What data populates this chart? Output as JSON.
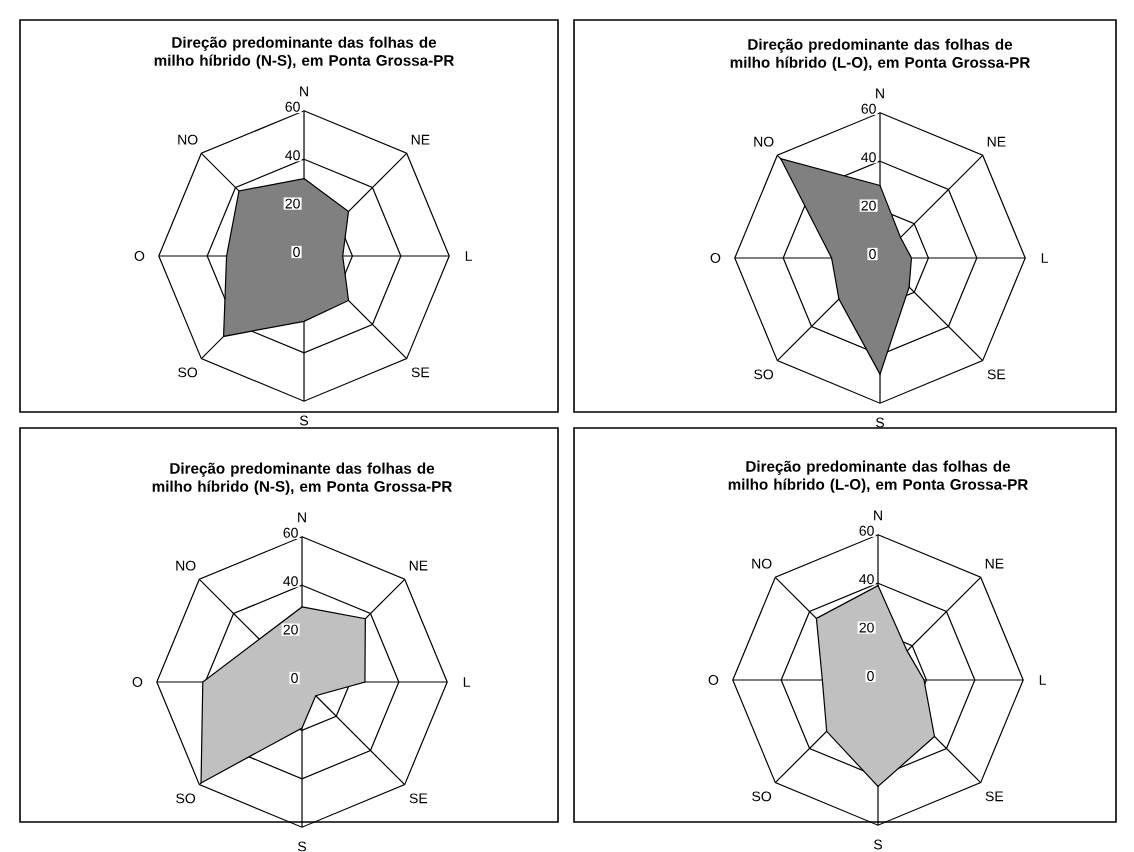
{
  "chart_data": [
    {
      "type": "radar",
      "title": "**Direção predominante das folhas de milho híbrido (N-S), em Ponta Grossa-PR**",
      "categories": [
        "N",
        "NE",
        "L",
        "SE",
        "S",
        "SO",
        "O",
        "NO"
      ],
      "ylim": [
        0,
        60
      ],
      "yticks": [
        0,
        20,
        40,
        60
      ],
      "grid": true,
      "series": [
        {
          "color": "#808080",
          "values": [
            32,
            26,
            16,
            26,
            27,
            47,
            32,
            38
          ]
        }
      ]
    },
    {
      "type": "radar",
      "title": "**Direção predominante das folhas de milho híbrido (L-O), em Ponta Grossa-PR**",
      "categories": [
        "N",
        "NE",
        "L",
        "SE",
        "S",
        "SO",
        "O",
        "NO"
      ],
      "ylim": [
        0,
        60
      ],
      "yticks": [
        0,
        20,
        40,
        60
      ],
      "grid": true,
      "series": [
        {
          "color": "#808080",
          "values": [
            30,
            12,
            13,
            17,
            48,
            24,
            20,
            58
          ]
        }
      ]
    },
    {
      "type": "radar",
      "title": "**Direção predominante das folhas de milho híbrido (N-S), em Ponta Grossa-PR**",
      "categories": [
        "N",
        "NE",
        "L",
        "SE",
        "S",
        "SO",
        "O",
        "NO"
      ],
      "ylim": [
        0,
        60
      ],
      "yticks": [
        0,
        20,
        40,
        60
      ],
      "grid": true,
      "series": [
        {
          "color": "#c0c0c0",
          "values": [
            31,
            37,
            26,
            8,
            19,
            59,
            41,
            25
          ]
        }
      ]
    },
    {
      "type": "radar",
      "title": "**Direção predominante das folhas de milho híbrido (L-O), em Ponta Grossa-PR**",
      "categories": [
        "N",
        "NE",
        "L",
        "SE",
        "S",
        "SO",
        "O",
        "NO"
      ],
      "ylim": [
        0,
        60
      ],
      "yticks": [
        0,
        20,
        40,
        60
      ],
      "grid": true,
      "series": [
        {
          "color": "#c0c0c0",
          "values": [
            39,
            17,
            19,
            33,
            44,
            30,
            23,
            36
          ]
        }
      ]
    }
  ]
}
